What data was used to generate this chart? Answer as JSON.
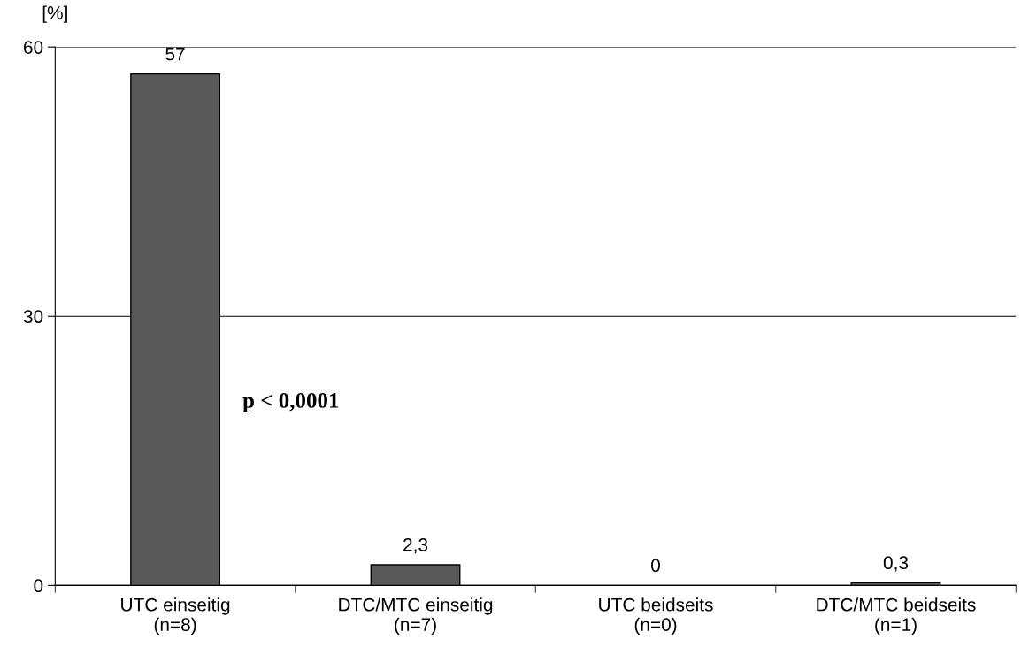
{
  "chart_data": {
    "type": "bar",
    "categories": [
      "UTC einseitig\n(n=8)",
      "DTC/MTC einseitig\n(n=7)",
      "UTC beidseits\n(n=0)",
      "DTC/MTC beidseits\n(n=1)"
    ],
    "values": [
      57,
      2.3,
      0,
      0.3
    ],
    "value_labels": [
      "57",
      "2,3",
      "0",
      "0,3"
    ],
    "color": "#595959",
    "ylabel": "[%]",
    "ylim": [
      0,
      60
    ],
    "yticks": [
      0,
      30,
      60
    ],
    "grid": "y",
    "legend": false,
    "annotations": [
      "p < 0,0001"
    ]
  }
}
